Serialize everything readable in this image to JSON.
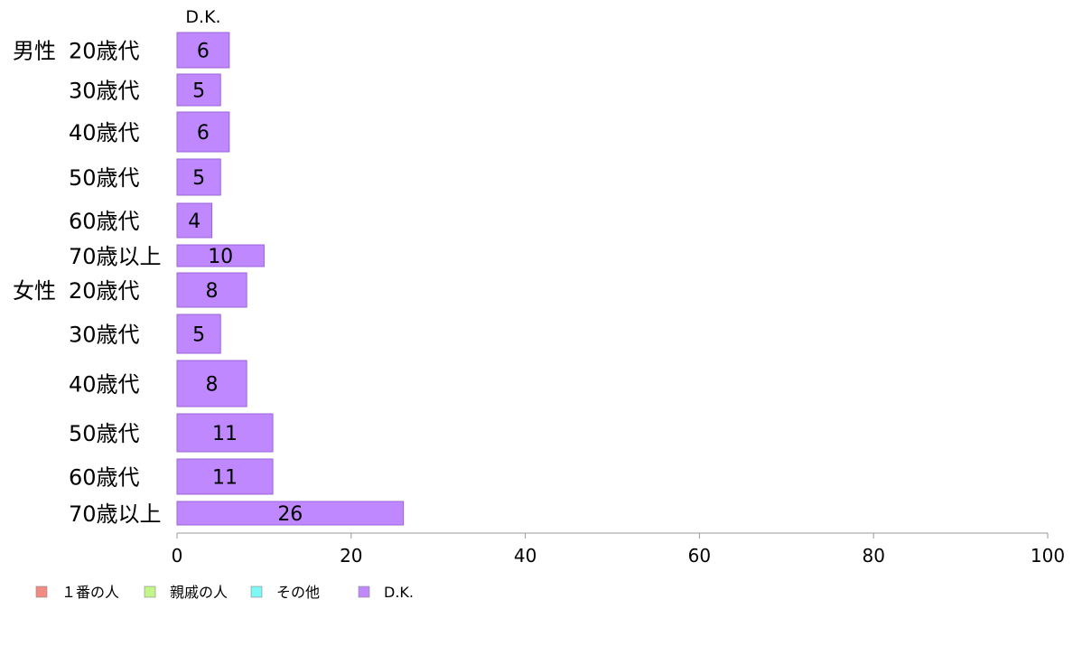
{
  "chart_data": {
    "type": "bar",
    "orientation": "horizontal",
    "series_header": "D.K.",
    "groups": [
      {
        "label": "男性",
        "rows": [
          {
            "label": "20歳代",
            "value": 6
          },
          {
            "label": "30歳代",
            "value": 5
          },
          {
            "label": "40歳代",
            "value": 6
          },
          {
            "label": "50歳代",
            "value": 5
          },
          {
            "label": "60歳代",
            "value": 4
          },
          {
            "label": "70歳以上",
            "value": 10
          }
        ]
      },
      {
        "label": "女性",
        "rows": [
          {
            "label": "20歳代",
            "value": 8
          },
          {
            "label": "30歳代",
            "value": 5
          },
          {
            "label": "40歳代",
            "value": 8
          },
          {
            "label": "50歳代",
            "value": 11
          },
          {
            "label": "60歳代",
            "value": 11
          },
          {
            "label": "70歳以上",
            "value": 26
          }
        ]
      }
    ],
    "xlim": [
      0,
      100
    ],
    "xticks": [
      0,
      20,
      40,
      60,
      80,
      100
    ],
    "grid": false,
    "legend_position": "bottom-left",
    "legend": [
      {
        "label": "１番の人",
        "color": "#f28b82"
      },
      {
        "label": "親戚の人",
        "color": "#c3f58a"
      },
      {
        "label": "その他",
        "color": "#7ff7f5"
      },
      {
        "label": "D.K.",
        "color": "#bf88ff"
      }
    ],
    "bar_color": "#bf88ff",
    "bar_stroke": "#9a63d8"
  }
}
